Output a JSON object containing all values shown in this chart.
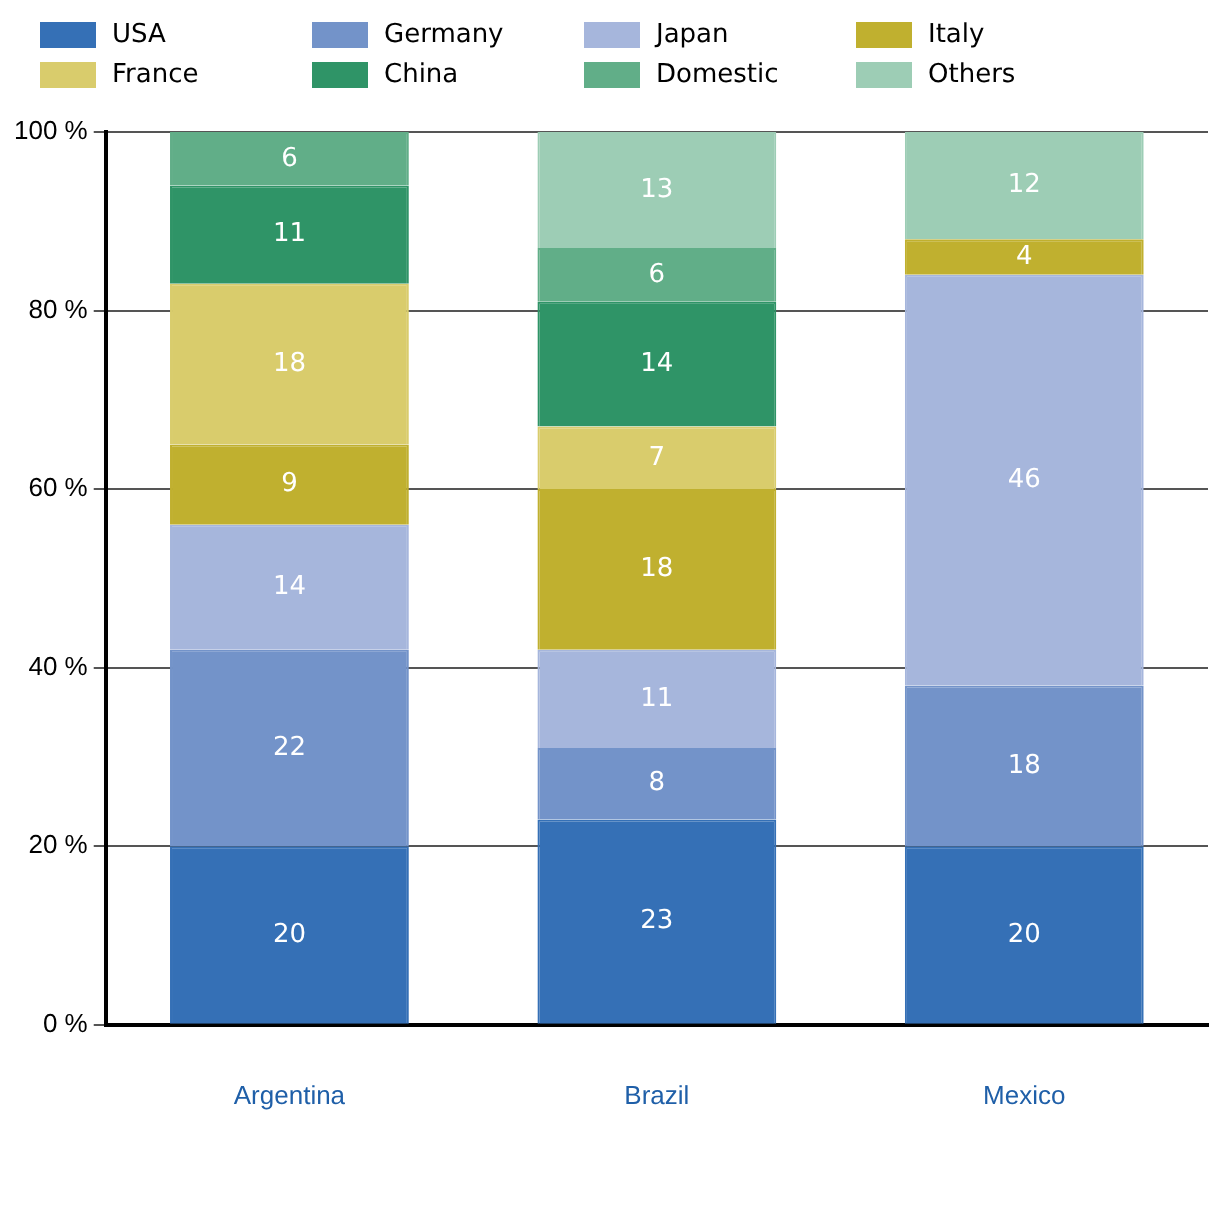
{
  "chart_data": {
    "type": "bar",
    "stacked": true,
    "categories": [
      "Argentina",
      "Brazil",
      "Mexico"
    ],
    "series": [
      {
        "name": "USA",
        "color": "#3570b6",
        "values": [
          20,
          23,
          20
        ]
      },
      {
        "name": "Germany",
        "color": "#7393c9",
        "values": [
          22,
          8,
          18
        ]
      },
      {
        "name": "Japan",
        "color": "#a6b6dc",
        "values": [
          14,
          11,
          46
        ]
      },
      {
        "name": "Italy",
        "color": "#c0b02f",
        "values": [
          9,
          18,
          4
        ]
      },
      {
        "name": "France",
        "color": "#d9cc6c",
        "values": [
          18,
          7,
          null
        ]
      },
      {
        "name": "China",
        "color": "#2f9467",
        "values": [
          11,
          14,
          null
        ]
      },
      {
        "name": "Domestic",
        "color": "#61ae88",
        "values": [
          6,
          6,
          null
        ]
      },
      {
        "name": "Others",
        "color": "#9dcdb5",
        "values": [
          null,
          13,
          12
        ]
      }
    ],
    "ylim": [
      0,
      100
    ],
    "yticks": [
      {
        "value": 0,
        "label": "0 %"
      },
      {
        "value": 20,
        "label": "20 %"
      },
      {
        "value": 40,
        "label": "40 %"
      },
      {
        "value": 60,
        "label": "60 %"
      },
      {
        "value": 80,
        "label": "80 %"
      },
      {
        "value": 100,
        "label": "100 %"
      }
    ],
    "grid": "y",
    "legend": "top",
    "data_labels": true
  }
}
